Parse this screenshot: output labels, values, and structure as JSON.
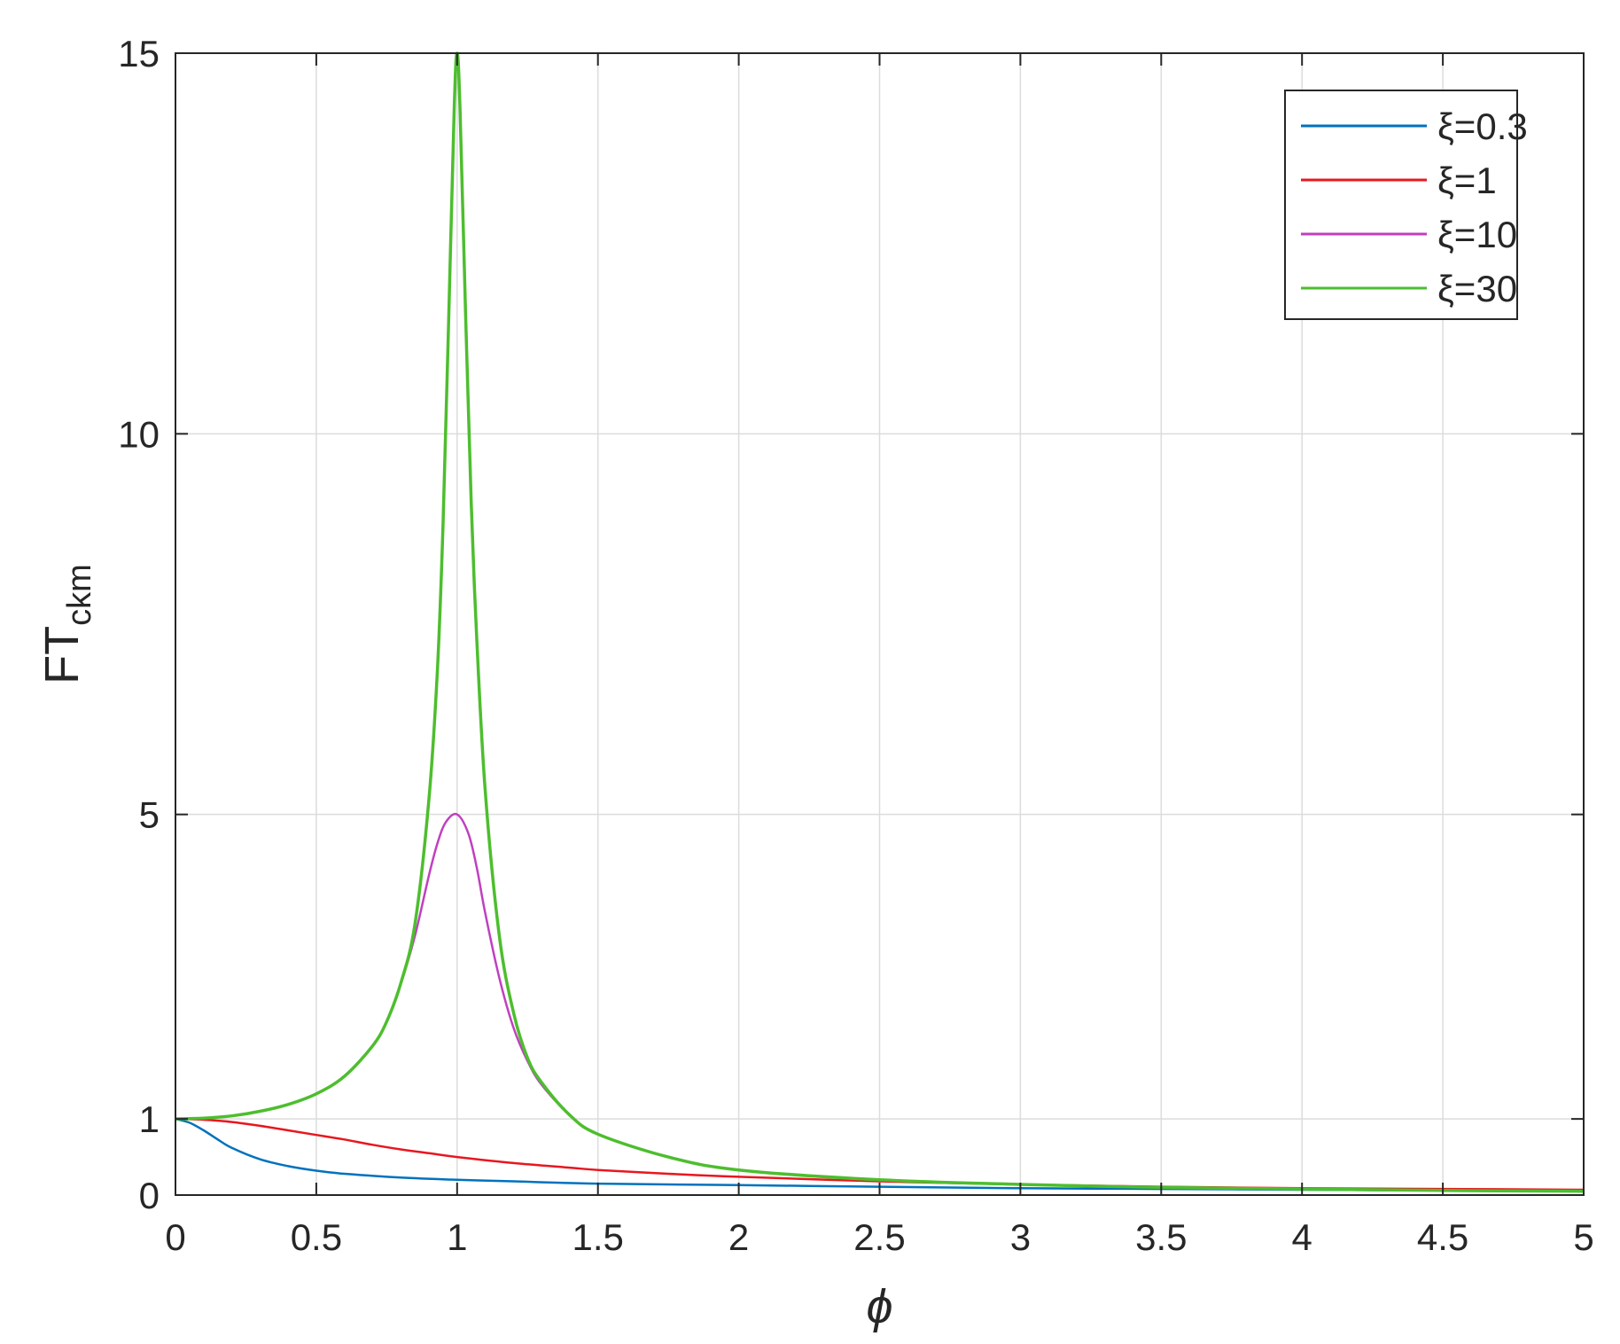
{
  "chart_data": {
    "type": "line",
    "xlabel": "ϕ",
    "ylabel_main": "FT",
    "ylabel_sub": "ckm",
    "xlim": [
      0,
      5
    ],
    "ylim": [
      0,
      15
    ],
    "x_ticks": [
      0,
      0.5,
      1,
      1.5,
      2,
      2.5,
      3,
      3.5,
      4,
      4.5,
      5
    ],
    "x_tick_labels": [
      "0",
      "0.5",
      "1",
      "1.5",
      "2",
      "2.5",
      "3",
      "3.5",
      "4",
      "4.5",
      "5"
    ],
    "y_ticks": [
      0,
      1,
      5,
      10,
      15
    ],
    "y_tick_labels": [
      "0",
      "1",
      "5",
      "10",
      "15"
    ],
    "grid": true,
    "legend_position": "top-right",
    "series": [
      {
        "name": "ξ=0.3",
        "color": "#0072BD",
        "x": [
          0,
          0.05,
          0.1,
          0.15,
          0.2,
          0.3,
          0.4,
          0.5,
          0.6,
          0.8,
          1.0,
          1.2,
          1.5,
          2.0,
          2.5,
          3.0,
          3.5,
          4.0,
          4.5,
          5.0
        ],
        "y": [
          1.0,
          0.95,
          0.85,
          0.73,
          0.62,
          0.47,
          0.38,
          0.32,
          0.28,
          0.23,
          0.2,
          0.18,
          0.15,
          0.13,
          0.11,
          0.09,
          0.08,
          0.07,
          0.06,
          0.05
        ]
      },
      {
        "name": "ξ=1",
        "color": "#E8171F",
        "x": [
          0,
          0.1,
          0.2,
          0.3,
          0.4,
          0.5,
          0.6,
          0.7,
          0.8,
          0.9,
          1.0,
          1.2,
          1.4,
          1.5,
          1.75,
          2.0,
          2.5,
          3.0,
          3.5,
          4.0,
          4.5,
          5.0
        ],
        "y": [
          1.0,
          0.99,
          0.96,
          0.91,
          0.85,
          0.79,
          0.73,
          0.66,
          0.6,
          0.55,
          0.5,
          0.42,
          0.36,
          0.33,
          0.28,
          0.24,
          0.18,
          0.14,
          0.11,
          0.09,
          0.08,
          0.07
        ]
      },
      {
        "name": "ξ=10",
        "color": "#C040C0",
        "x": [
          0,
          0.1,
          0.2,
          0.3,
          0.4,
          0.5,
          0.6,
          0.7,
          0.75,
          0.8,
          0.85,
          0.9,
          0.93,
          0.96,
          1.0,
          1.04,
          1.07,
          1.1,
          1.15,
          1.2,
          1.25,
          1.3,
          1.4,
          1.5,
          1.75,
          2.0,
          2.5,
          3.0,
          3.5,
          4.0,
          4.5,
          5.0
        ],
        "y": [
          1.0,
          1.01,
          1.04,
          1.1,
          1.19,
          1.33,
          1.56,
          1.96,
          2.28,
          2.77,
          3.4,
          4.2,
          4.62,
          4.9,
          5.0,
          4.75,
          4.3,
          3.7,
          2.85,
          2.2,
          1.76,
          1.45,
          1.05,
          0.8,
          0.5,
          0.33,
          0.2,
          0.14,
          0.1,
          0.08,
          0.06,
          0.05
        ]
      },
      {
        "name": "ξ=30",
        "color": "#4DBE2E",
        "x": [
          0,
          0.1,
          0.2,
          0.3,
          0.4,
          0.5,
          0.6,
          0.7,
          0.75,
          0.8,
          0.85,
          0.9,
          0.93,
          0.95,
          0.97,
          0.99,
          1.0,
          1.01,
          1.03,
          1.05,
          1.07,
          1.1,
          1.15,
          1.2,
          1.25,
          1.3,
          1.4,
          1.5,
          1.75,
          2.0,
          2.5,
          3.0,
          3.5,
          4.0,
          4.5,
          5.0
        ],
        "y": [
          1.0,
          1.01,
          1.04,
          1.1,
          1.19,
          1.33,
          1.56,
          1.96,
          2.28,
          2.78,
          3.55,
          5.2,
          6.9,
          8.8,
          11.5,
          14.3,
          15.0,
          14.3,
          11.6,
          9.1,
          7.3,
          5.3,
          3.4,
          2.4,
          1.8,
          1.48,
          1.05,
          0.8,
          0.5,
          0.33,
          0.2,
          0.14,
          0.1,
          0.08,
          0.06,
          0.05
        ]
      }
    ]
  }
}
